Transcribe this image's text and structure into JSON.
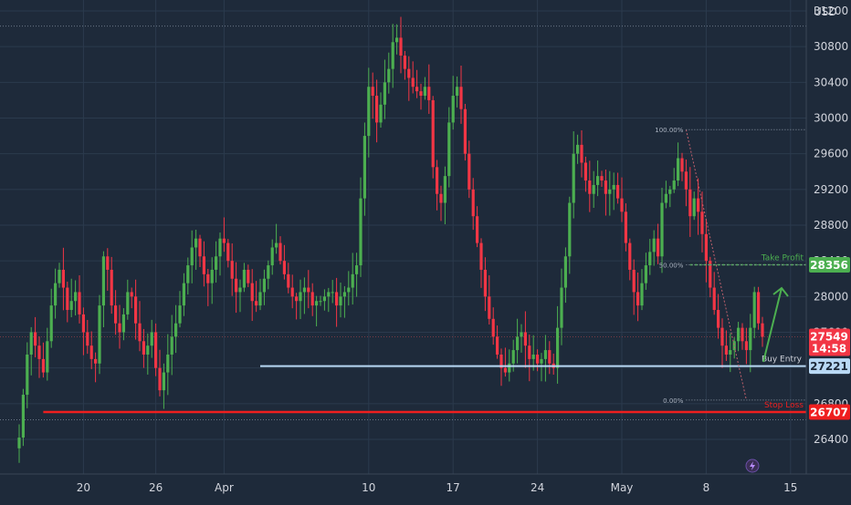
{
  "chart_data": {
    "type": "candlestick",
    "currency_label": "USD",
    "y_ticks": [
      26400,
      26800,
      27200,
      27600,
      28000,
      28400,
      28800,
      29200,
      29600,
      30000,
      30400,
      30800,
      31200
    ],
    "ylim": [
      26100,
      31500
    ],
    "x_tick_labels": [
      {
        "label": "20",
        "slot": 16
      },
      {
        "label": "26",
        "slot": 34
      },
      {
        "label": "Apr",
        "slot": 51
      },
      {
        "label": "10",
        "slot": 87
      },
      {
        "label": "17",
        "slot": 108
      },
      {
        "label": "24",
        "slot": 129
      },
      {
        "label": "May",
        "slot": 150
      },
      {
        "label": "8",
        "slot": 171
      },
      {
        "label": "15",
        "slot": 192
      }
    ],
    "closes": [
      26420,
      26900,
      27350,
      27600,
      27450,
      27300,
      27150,
      27500,
      27900,
      28150,
      28300,
      28100,
      27850,
      27950,
      28050,
      27800,
      27600,
      27450,
      27300,
      27250,
      27900,
      28450,
      28300,
      27900,
      27700,
      27600,
      27800,
      28050,
      28000,
      27700,
      27500,
      27350,
      27450,
      27600,
      27200,
      26950,
      27150,
      27350,
      27550,
      27700,
      27900,
      28150,
      28350,
      28550,
      28650,
      28450,
      28250,
      28150,
      28300,
      28450,
      28650,
      28600,
      28400,
      28200,
      28050,
      28100,
      28300,
      28150,
      27950,
      27900,
      28050,
      28200,
      28350,
      28550,
      28600,
      28400,
      28250,
      28100,
      28000,
      27950,
      28050,
      28100,
      28050,
      27900,
      27950,
      27950,
      28000,
      28050,
      28050,
      27900,
      28000,
      28050,
      28100,
      28250,
      28350,
      29100,
      29800,
      30350,
      30250,
      29950,
      30150,
      30400,
      30550,
      30850,
      30900,
      30700,
      30550,
      30450,
      30350,
      30300,
      30250,
      30350,
      30200,
      29450,
      29150,
      29050,
      29350,
      29950,
      30250,
      30350,
      30100,
      29600,
      29200,
      28900,
      28600,
      28300,
      28000,
      27750,
      27550,
      27350,
      27200,
      27150,
      27250,
      27400,
      27550,
      27600,
      27450,
      27300,
      27350,
      27250,
      27300,
      27400,
      27250,
      27200,
      27650,
      28100,
      28450,
      29050,
      29600,
      29700,
      29500,
      29300,
      29150,
      29250,
      29350,
      29300,
      29150,
      29200,
      29250,
      29100,
      28950,
      28600,
      28300,
      28050,
      27900,
      28150,
      28350,
      28500,
      28650,
      28450,
      29050,
      29150,
      29200,
      29300,
      29550,
      29400,
      29200,
      28900,
      29100,
      28950,
      28700,
      28400,
      28100,
      27850,
      27650,
      27450,
      27350,
      27400,
      27500,
      27650,
      27500,
      27400,
      27650,
      28050,
      27700,
      27549
    ],
    "levels": {
      "take_profit": {
        "label": "Take Profit",
        "value": 28356,
        "price_label": "28356",
        "color": "#4caf50"
      },
      "buy_entry": {
        "label": "Buy Entry",
        "value": 27221,
        "price_label": "27221",
        "color": "#b9d9f5"
      },
      "stop_loss": {
        "label": "Stop Loss",
        "value": 26707,
        "price_label": "26707",
        "color": "#ef1f1f"
      }
    },
    "current_price": {
      "value": 27549,
      "price_label": "27549",
      "countdown": "14:58",
      "color": "#f23645"
    },
    "fibonacci": {
      "high": 29870,
      "low": 26840,
      "levels": [
        {
          "label": "100.00%",
          "value": 29870
        },
        {
          "label": "50.00%",
          "value": 28356
        },
        {
          "label": "0.00%",
          "value": 26840
        }
      ]
    },
    "dotted_reference_levels": [
      31030,
      26620
    ],
    "colors": {
      "up": "#4caf50",
      "down": "#f23645",
      "background": "#1e2a3a",
      "grid": "#2b3a4d",
      "axis_text": "#d1d4dc"
    }
  }
}
